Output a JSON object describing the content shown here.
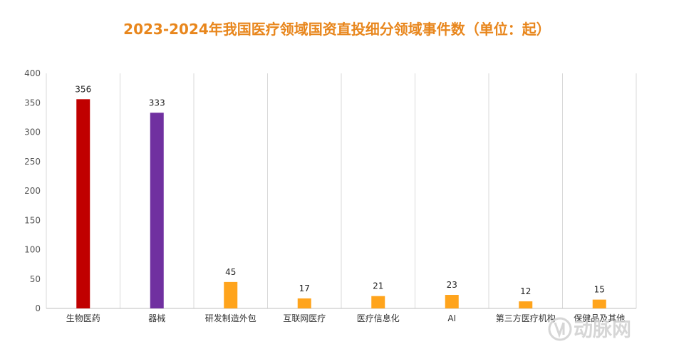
{
  "chart_data": {
    "type": "bar",
    "title": "2023-2024年我国医疗领域国资直投细分领域事件数（单位：起）",
    "xlabel": "",
    "ylabel": "",
    "categories": [
      "生物医药",
      "器械",
      "研发制造外包",
      "互联网医疗",
      "医疗信息化",
      "AI",
      "第三方医疗机构",
      "保健品及其他"
    ],
    "values": [
      356,
      333,
      45,
      17,
      21,
      23,
      12,
      15
    ],
    "bar_colors": [
      "#c00000",
      "#7030a0",
      "#ffa41c",
      "#ffa41c",
      "#ffa41c",
      "#ffa41c",
      "#ffa41c",
      "#ffa41c"
    ],
    "ylim": [
      0,
      400
    ],
    "yticks": [
      0,
      50,
      100,
      150,
      200,
      250,
      300,
      350,
      400
    ],
    "grid": "vertical separators",
    "legend": "none",
    "data_labels": true
  },
  "colors": {
    "title": "#e8861c",
    "axis": "#bfbfbf",
    "grid": "#d9d9d9",
    "watermark": "#d2d2d2"
  },
  "watermark": {
    "text": "动脉网",
    "icon": "vb-logo-icon"
  }
}
